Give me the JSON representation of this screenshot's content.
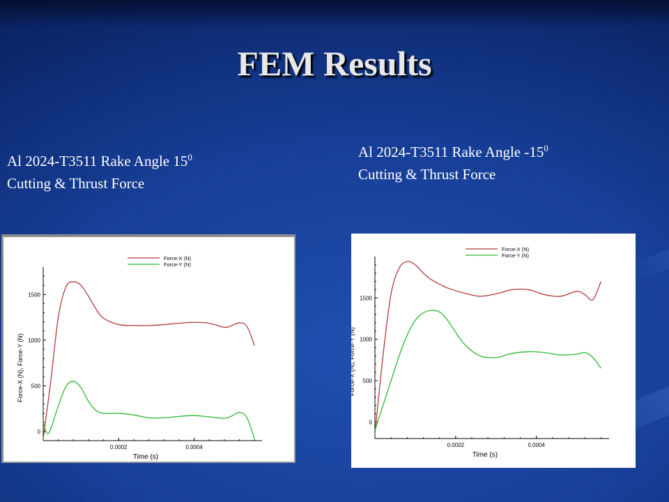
{
  "slide": {
    "title": "FEM Results"
  },
  "captions": {
    "left": {
      "line1_text": "Al 2024-T3511 Rake Angle  15",
      "line1_sup": "0",
      "line2": "Cutting & Thrust Force"
    },
    "right": {
      "line1_text": "Al 2024-T3511 Rake Angle  -15",
      "line1_sup": "0",
      "line2": "Cutting & Thrust Force"
    }
  },
  "colors": {
    "force_x": "#b03a3a",
    "force_y": "#2eb82e"
  },
  "chart_data": [
    {
      "type": "line",
      "title": "",
      "xlabel": "Time (s)",
      "ylabel": "Force-X (N), Force-Y (N)",
      "xlim": [
        0,
        0.00058
      ],
      "ylim": [
        -100,
        1800
      ],
      "xticks": [
        0.0002,
        0.0004
      ],
      "xtick_labels": [
        "0.0002",
        "0.0004"
      ],
      "yticks": [
        0,
        500,
        1000,
        1500
      ],
      "ytick_labels": [
        "0",
        "500",
        "1000",
        "1500"
      ],
      "legend": "top-right",
      "grid": false,
      "series": [
        {
          "name": "Force-X (N)",
          "x": [
            0,
            2e-05,
            4e-05,
            6e-05,
            8e-05,
            0.0001,
            0.00012,
            0.00014,
            0.00016,
            0.0002,
            0.00024,
            0.00028,
            0.00032,
            0.00036,
            0.0004,
            0.00044,
            0.00048,
            0.0005,
            0.00052,
            0.00054,
            0.00056
          ],
          "y": [
            -80,
            550,
            1250,
            1580,
            1640,
            1600,
            1480,
            1340,
            1240,
            1170,
            1160,
            1160,
            1170,
            1185,
            1195,
            1185,
            1140,
            1160,
            1190,
            1150,
            940
          ]
        },
        {
          "name": "Force-Y (N)",
          "x": [
            0,
            1e-05,
            2e-05,
            4e-05,
            6e-05,
            8e-05,
            0.0001,
            0.00012,
            0.00014,
            0.00016,
            0.0002,
            0.00024,
            0.00028,
            0.00032,
            0.00036,
            0.0004,
            0.00044,
            0.00048,
            0.0005,
            0.00052,
            0.00054,
            0.00056
          ],
          "y": [
            100,
            -20,
            30,
            280,
            490,
            550,
            480,
            330,
            230,
            200,
            200,
            180,
            150,
            150,
            165,
            175,
            160,
            145,
            170,
            210,
            150,
            -80
          ]
        }
      ]
    },
    {
      "type": "line",
      "title": "",
      "xlabel": "Time (s)",
      "ylabel": "Force-X (N), Force-Y (N)",
      "xlim": [
        0,
        0.00058
      ],
      "ylim": [
        -200,
        2000
      ],
      "xticks": [
        0.0002,
        0.0004
      ],
      "xtick_labels": [
        "0.0002",
        "0.0004"
      ],
      "yticks": [
        0,
        500,
        1000,
        1500
      ],
      "ytick_labels": [
        "0",
        "500",
        "1000",
        "1500"
      ],
      "legend": "top-right",
      "grid": false,
      "series": [
        {
          "name": "Force-X (N)",
          "x": [
            0,
            2e-05,
            4e-05,
            6e-05,
            8e-05,
            0.0001,
            0.00012,
            0.00014,
            0.00018,
            0.00022,
            0.00026,
            0.0003,
            0.00034,
            0.00038,
            0.00042,
            0.00046,
            0.0005,
            0.00052,
            0.00054,
            0.00056
          ],
          "y": [
            -150,
            800,
            1550,
            1860,
            1940,
            1900,
            1800,
            1720,
            1620,
            1560,
            1520,
            1550,
            1600,
            1600,
            1540,
            1520,
            1580,
            1540,
            1480,
            1700
          ]
        },
        {
          "name": "Force-Y (N)",
          "x": [
            0,
            2e-05,
            4e-05,
            6e-05,
            8e-05,
            0.0001,
            0.00012,
            0.00014,
            0.00016,
            0.00018,
            0.00022,
            0.00026,
            0.0003,
            0.00034,
            0.00038,
            0.00042,
            0.00046,
            0.0005,
            0.00052,
            0.00054,
            0.00056
          ],
          "y": [
            -100,
            200,
            500,
            800,
            1050,
            1230,
            1320,
            1350,
            1330,
            1230,
            950,
            800,
            780,
            830,
            850,
            840,
            810,
            820,
            840,
            780,
            650
          ]
        }
      ]
    }
  ]
}
